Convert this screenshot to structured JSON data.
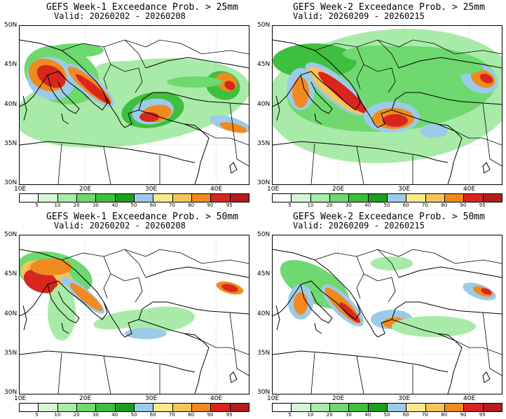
{
  "colors": {
    "levels": [
      "#ffffff",
      "#d8f5d8",
      "#a8eba8",
      "#6fd86f",
      "#3fbf3f",
      "#1e9e1e",
      "#9ccbea",
      "#f5ea8c",
      "#f5c45a",
      "#f08a1e",
      "#d8261e",
      "#b21e1e"
    ],
    "coast": "#000000",
    "grid": "#999999"
  },
  "colorbar_labels": [
    "5",
    "10",
    "20",
    "30",
    "40",
    "50",
    "60",
    "70",
    "80",
    "90",
    "95"
  ],
  "panels": [
    {
      "title": "GEFS Week-1 Exceedance Prob. > 25mm",
      "valid": "Valid: 20260202 - 20260208"
    },
    {
      "title": "GEFS Week-2 Exceedance Prob. > 25mm",
      "valid": "Valid: 20260209 - 20260215"
    },
    {
      "title": "GEFS Week-1 Exceedance Prob. > 50mm",
      "valid": "Valid: 20260202 - 20260208"
    },
    {
      "title": "GEFS Week-2 Exceedance Prob. > 50mm",
      "valid": "Valid: 20260209 - 20260215"
    }
  ],
  "axes": {
    "lat_labels": [
      "50N",
      "45N",
      "40N",
      "35N",
      "30N"
    ],
    "lon_labels": [
      "10E",
      "20E",
      "30E",
      "40E"
    ]
  }
}
